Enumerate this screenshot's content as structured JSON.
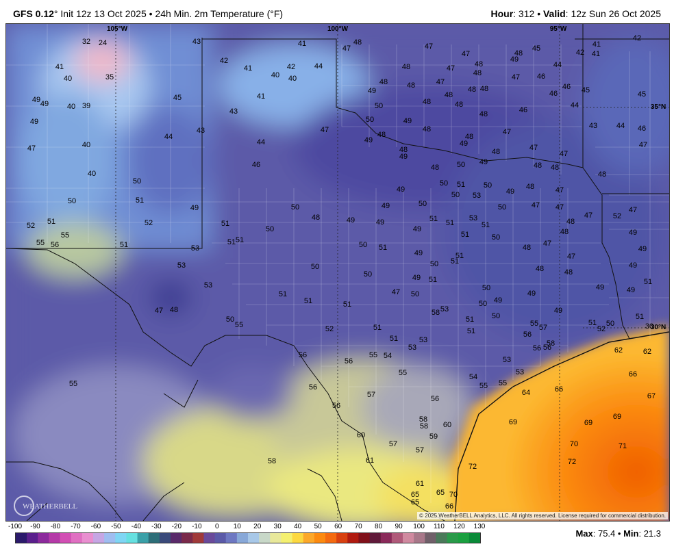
{
  "header": {
    "model": "GFS 0.12",
    "init": "Init 12z 13 Oct 2025",
    "product": "24h Min. 2m Temperature (°F)",
    "hour_label": "Hour",
    "hour_value": ": 312",
    "valid_label": "Valid",
    "valid_value": ": 12z Sun 26 Oct 2025"
  },
  "gridlines": {
    "lon_labels": [
      "105°W",
      "100°W",
      "95°W"
    ],
    "lat_labels": [
      "35°N",
      "30°N"
    ]
  },
  "copyright": "© 2025 WeatherBELL Analytics, LLC. All rights reserved. License required for commercial distribution.",
  "logo_text": "WEATHERBELL",
  "colorbar": {
    "ticks": [
      "-100",
      "-90",
      "-80",
      "-70",
      "-60",
      "-50",
      "-40",
      "-30",
      "-20",
      "-10",
      "0",
      "10",
      "20",
      "30",
      "40",
      "50",
      "60",
      "70",
      "80",
      "90",
      "100",
      "110",
      "120",
      "130"
    ],
    "colors": [
      "#2b1a6b",
      "#5a1f8c",
      "#8c2a9c",
      "#b53aa8",
      "#d24fb4",
      "#e070c2",
      "#e98fd0",
      "#c6a6e4",
      "#9fbdf0",
      "#7fd6f4",
      "#66e0e0",
      "#3aa0a8",
      "#2d6e78",
      "#3a4a7a",
      "#5a2a6a",
      "#7a2a4a",
      "#a03a3a",
      "#6a4a9a",
      "#5b5aa8",
      "#6e78c2",
      "#88a8d8",
      "#a8c8e8",
      "#c8d8c8",
      "#e8e89a",
      "#f4f070",
      "#fcd840",
      "#fca82a",
      "#fc8a10",
      "#f46a10",
      "#d84010",
      "#b01a10",
      "#80101a",
      "#601a3a",
      "#8a2a5a",
      "#b05a7a",
      "#d08aa0",
      "#a8788a",
      "#70606a",
      "#4a7a5a",
      "#2a9a4a",
      "#1aa040",
      "#0a8a38"
    ]
  },
  "stats": {
    "max_label": "Max",
    "max_value": ": 75.4",
    "min_label": "Min",
    "min_value": ": 21.3"
  },
  "temps": [
    [
      "32",
      126,
      61
    ],
    [
      "24",
      150,
      63
    ],
    [
      "43",
      287,
      61
    ],
    [
      "41",
      441,
      64
    ],
    [
      "48",
      522,
      62
    ],
    [
      "47",
      506,
      71
    ],
    [
      "47",
      626,
      68
    ],
    [
      "47",
      680,
      79
    ],
    [
      "48",
      757,
      78
    ],
    [
      "45",
      783,
      71
    ],
    [
      "42",
      847,
      77
    ],
    [
      "41",
      871,
      65
    ],
    [
      "41",
      870,
      79
    ],
    [
      "42",
      930,
      56
    ],
    [
      "41",
      87,
      98
    ],
    [
      "40",
      99,
      115
    ],
    [
      "35",
      160,
      113
    ],
    [
      "42",
      327,
      89
    ],
    [
      "41",
      362,
      100
    ],
    [
      "40",
      402,
      110
    ],
    [
      "42",
      425,
      98
    ],
    [
      "40",
      427,
      115
    ],
    [
      "44",
      465,
      97
    ],
    [
      "48",
      593,
      98
    ],
    [
      "47",
      658,
      100
    ],
    [
      "48",
      699,
      94
    ],
    [
      "49",
      751,
      87
    ],
    [
      "48",
      697,
      107
    ],
    [
      "44",
      814,
      95
    ],
    [
      "49",
      53,
      146
    ],
    [
      "49",
      65,
      152
    ],
    [
      "40",
      104,
      156
    ],
    [
      "39",
      126,
      155
    ],
    [
      "45",
      259,
      143
    ],
    [
      "41",
      381,
      141
    ],
    [
      "48",
      560,
      120
    ],
    [
      "49",
      543,
      133
    ],
    [
      "48",
      600,
      125
    ],
    [
      "47",
      643,
      120
    ],
    [
      "48",
      689,
      131
    ],
    [
      "47",
      753,
      113
    ],
    [
      "46",
      790,
      112
    ],
    [
      "46",
      827,
      127
    ],
    [
      "46",
      808,
      137
    ],
    [
      "45",
      855,
      132
    ],
    [
      "45",
      937,
      138
    ],
    [
      "49",
      50,
      178
    ],
    [
      "43",
      341,
      163
    ],
    [
      "50",
      553,
      155
    ],
    [
      "48",
      623,
      149
    ],
    [
      "48",
      655,
      139
    ],
    [
      "48",
      670,
      153
    ],
    [
      "48",
      706,
      167
    ],
    [
      "46",
      764,
      161
    ],
    [
      "44",
      839,
      154
    ],
    [
      "48",
      707,
      130
    ],
    [
      "47",
      46,
      217
    ],
    [
      "40",
      126,
      212
    ],
    [
      "44",
      246,
      200
    ],
    [
      "43",
      293,
      191
    ],
    [
      "44",
      381,
      208
    ],
    [
      "47",
      474,
      190
    ],
    [
      "50",
      540,
      175
    ],
    [
      "49",
      595,
      177
    ],
    [
      "48",
      623,
      189
    ],
    [
      "48",
      557,
      197
    ],
    [
      "49",
      538,
      205
    ],
    [
      "48",
      685,
      200
    ],
    [
      "49",
      677,
      210
    ],
    [
      "47",
      740,
      193
    ],
    [
      "43",
      866,
      184
    ],
    [
      "44",
      906,
      184
    ],
    [
      "46",
      937,
      188
    ],
    [
      "47",
      939,
      212
    ],
    [
      "40",
      134,
      254
    ],
    [
      "46",
      374,
      241
    ],
    [
      "48",
      589,
      219
    ],
    [
      "49",
      589,
      229
    ],
    [
      "48",
      635,
      245
    ],
    [
      "50",
      673,
      241
    ],
    [
      "49",
      706,
      237
    ],
    [
      "48",
      724,
      222
    ],
    [
      "47",
      779,
      216
    ],
    [
      "47",
      823,
      225
    ],
    [
      "48",
      785,
      242
    ],
    [
      "48",
      810,
      245
    ],
    [
      "48",
      879,
      255
    ],
    [
      "50",
      200,
      265
    ],
    [
      "50",
      105,
      294
    ],
    [
      "51",
      204,
      293
    ],
    [
      "49",
      284,
      304
    ],
    [
      "49",
      585,
      277
    ],
    [
      "50",
      648,
      268
    ],
    [
      "51",
      673,
      270
    ],
    [
      "50",
      712,
      271
    ],
    [
      "49",
      745,
      280
    ],
    [
      "48",
      774,
      273
    ],
    [
      "47",
      817,
      278
    ],
    [
      "50",
      665,
      285
    ],
    [
      "53",
      696,
      286
    ],
    [
      "52",
      45,
      330
    ],
    [
      "51",
      75,
      324
    ],
    [
      "52",
      217,
      326
    ],
    [
      "51",
      329,
      327
    ],
    [
      "50",
      431,
      303
    ],
    [
      "48",
      461,
      318
    ],
    [
      "49",
      512,
      322
    ],
    [
      "49",
      563,
      301
    ],
    [
      "50",
      617,
      298
    ],
    [
      "49",
      555,
      325
    ],
    [
      "51",
      633,
      320
    ],
    [
      "51",
      657,
      326
    ],
    [
      "53",
      691,
      319
    ],
    [
      "51",
      709,
      329
    ],
    [
      "50",
      733,
      303
    ],
    [
      "47",
      782,
      300
    ],
    [
      "47",
      817,
      303
    ],
    [
      "48",
      833,
      324
    ],
    [
      "47",
      859,
      315
    ],
    [
      "52",
      901,
      316
    ],
    [
      "47",
      924,
      307
    ],
    [
      "55",
      59,
      355
    ],
    [
      "56",
      80,
      358
    ],
    [
      "55",
      95,
      344
    ],
    [
      "51",
      181,
      358
    ],
    [
      "53",
      285,
      363
    ],
    [
      "51",
      338,
      354
    ],
    [
      "51",
      350,
      351
    ],
    [
      "50",
      394,
      335
    ],
    [
      "49",
      609,
      335
    ],
    [
      "50",
      530,
      358
    ],
    [
      "51",
      559,
      362
    ],
    [
      "51",
      679,
      343
    ],
    [
      "50",
      724,
      347
    ],
    [
      "48",
      824,
      339
    ],
    [
      "47",
      799,
      356
    ],
    [
      "48",
      769,
      362
    ],
    [
      "49",
      924,
      340
    ],
    [
      "53",
      265,
      388
    ],
    [
      "50",
      460,
      390
    ],
    [
      "49",
      611,
      370
    ],
    [
      "50",
      634,
      386
    ],
    [
      "51",
      664,
      382
    ],
    [
      "51",
      671,
      374
    ],
    [
      "48",
      788,
      393
    ],
    [
      "47",
      834,
      375
    ],
    [
      "48",
      830,
      398
    ],
    [
      "49",
      938,
      364
    ],
    [
      "49",
      924,
      388
    ],
    [
      "53",
      304,
      417
    ],
    [
      "51",
      413,
      430
    ],
    [
      "51",
      450,
      440
    ],
    [
      "50",
      537,
      401
    ],
    [
      "49",
      608,
      406
    ],
    [
      "51",
      632,
      409
    ],
    [
      "47",
      578,
      427
    ],
    [
      "50",
      606,
      430
    ],
    [
      "50",
      710,
      421
    ],
    [
      "50",
      705,
      444
    ],
    [
      "49",
      727,
      439
    ],
    [
      "49",
      776,
      429
    ],
    [
      "49",
      876,
      420
    ],
    [
      "49",
      921,
      424
    ],
    [
      "51",
      946,
      412
    ],
    [
      "47",
      232,
      454
    ],
    [
      "48",
      254,
      453
    ],
    [
      "51",
      507,
      445
    ],
    [
      "58",
      636,
      457
    ],
    [
      "53",
      649,
      452
    ],
    [
      "50",
      724,
      462
    ],
    [
      "51",
      686,
      467
    ],
    [
      "49",
      815,
      454
    ],
    [
      "51",
      934,
      463
    ],
    [
      "50",
      336,
      467
    ],
    [
      "55",
      349,
      475
    ],
    [
      "52",
      481,
      481
    ],
    [
      "51",
      551,
      479
    ],
    [
      "51",
      688,
      484
    ],
    [
      "55",
      780,
      473
    ],
    [
      "57",
      793,
      479
    ],
    [
      "51",
      865,
      472
    ],
    [
      "50",
      891,
      473
    ],
    [
      "52",
      878,
      481
    ],
    [
      "30",
      948,
      477
    ],
    [
      "51",
      575,
      495
    ],
    [
      "53",
      618,
      497
    ],
    [
      "53",
      602,
      508
    ],
    [
      "56",
      770,
      489
    ],
    [
      "58",
      804,
      502
    ],
    [
      "56",
      784,
      509
    ],
    [
      "56",
      799,
      508
    ],
    [
      "62",
      903,
      512
    ],
    [
      "62",
      945,
      514
    ],
    [
      "56",
      442,
      519
    ],
    [
      "55",
      545,
      519
    ],
    [
      "54",
      566,
      520
    ],
    [
      "56",
      509,
      528
    ],
    [
      "53",
      740,
      526
    ],
    [
      "66",
      924,
      547
    ],
    [
      "55",
      107,
      561
    ],
    [
      "55",
      588,
      545
    ],
    [
      "53",
      759,
      544
    ],
    [
      "54",
      691,
      551
    ],
    [
      "55",
      706,
      564
    ],
    [
      "55",
      734,
      560
    ],
    [
      "64",
      768,
      574
    ],
    [
      "66",
      816,
      569
    ],
    [
      "67",
      951,
      579
    ],
    [
      "56",
      457,
      566
    ],
    [
      "57",
      542,
      577
    ],
    [
      "56",
      635,
      583
    ],
    [
      "56",
      491,
      593
    ],
    [
      "58",
      618,
      613
    ],
    [
      "58",
      619,
      623
    ],
    [
      "60",
      653,
      621
    ],
    [
      "69",
      749,
      617
    ],
    [
      "69",
      859,
      618
    ],
    [
      "69",
      901,
      609
    ],
    [
      "60",
      527,
      636
    ],
    [
      "59",
      633,
      638
    ],
    [
      "70",
      838,
      649
    ],
    [
      "71",
      909,
      652
    ],
    [
      "57",
      574,
      649
    ],
    [
      "57",
      613,
      658
    ],
    [
      "58",
      397,
      674
    ],
    [
      "61",
      540,
      673
    ],
    [
      "72",
      690,
      682
    ],
    [
      "72",
      835,
      675
    ],
    [
      "61",
      613,
      707
    ],
    [
      "65",
      606,
      723
    ],
    [
      "65",
      643,
      720
    ],
    [
      "70",
      662,
      723
    ],
    [
      "65",
      606,
      734
    ],
    [
      "66",
      656,
      740
    ]
  ]
}
